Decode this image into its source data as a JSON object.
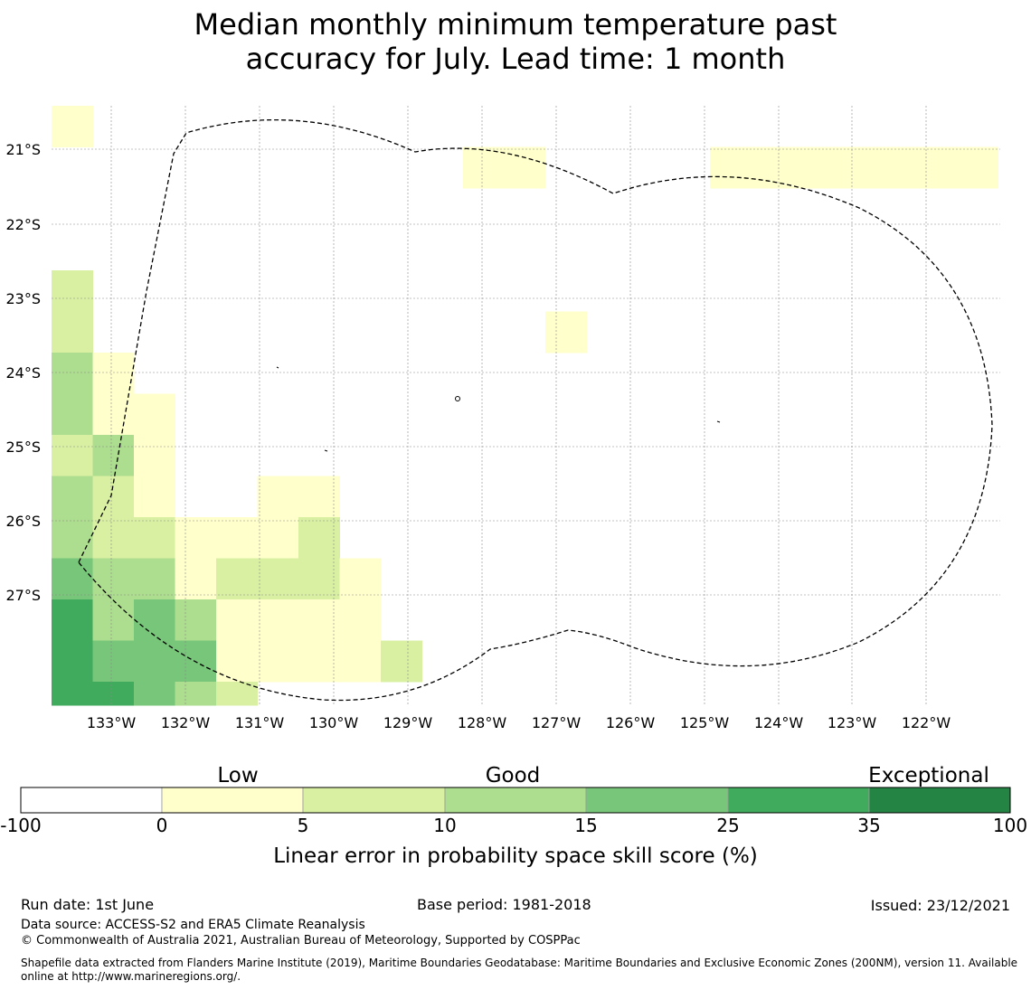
{
  "title": {
    "line1": "Median monthly minimum temperature past",
    "line2": "accuracy for July. Lead time: 1 month"
  },
  "map": {
    "lat_labels": [
      "21°S",
      "22°S",
      "23°S",
      "24°S",
      "25°S",
      "26°S",
      "27°S"
    ],
    "lon_labels": [
      "133°W",
      "132°W",
      "131°W",
      "130°W",
      "129°W",
      "128°W",
      "127°W",
      "126°W",
      "125°W",
      "124°W",
      "123°W",
      "122°W"
    ],
    "color_classes": [
      "#ffffff",
      "#ffffcc",
      "#d9f0a3",
      "#addd8e",
      "#78c679",
      "#41ab5d",
      "#238443"
    ],
    "grid": [
      [
        1,
        -1,
        -1,
        -1,
        -1,
        -1,
        -1,
        -1,
        -1,
        -1,
        -1,
        -1,
        -1,
        -1,
        -1,
        -1,
        -1,
        -1,
        -1,
        -1,
        -1,
        -1,
        -1
      ],
      [
        -1,
        -1,
        -1,
        -1,
        -1,
        -1,
        -1,
        -1,
        -1,
        -1,
        1,
        1,
        -1,
        -1,
        -1,
        -1,
        1,
        1,
        1,
        1,
        1,
        1,
        1
      ],
      [
        -1,
        -1,
        -1,
        -1,
        -1,
        -1,
        -1,
        -1,
        -1,
        -1,
        -1,
        -1,
        -1,
        -1,
        -1,
        -1,
        -1,
        -1,
        -1,
        -1,
        -1,
        -1,
        -1
      ],
      [
        -1,
        -1,
        -1,
        -1,
        -1,
        -1,
        -1,
        -1,
        -1,
        -1,
        -1,
        -1,
        -1,
        -1,
        -1,
        -1,
        -1,
        -1,
        -1,
        -1,
        -1,
        -1,
        -1
      ],
      [
        2,
        -1,
        -1,
        -1,
        -1,
        -1,
        -1,
        -1,
        -1,
        -1,
        -1,
        -1,
        -1,
        -1,
        -1,
        -1,
        -1,
        -1,
        -1,
        -1,
        -1,
        -1,
        -1
      ],
      [
        2,
        -1,
        -1,
        -1,
        -1,
        -1,
        -1,
        -1,
        -1,
        -1,
        -1,
        -1,
        1,
        -1,
        -1,
        -1,
        -1,
        -1,
        -1,
        -1,
        -1,
        -1,
        -1
      ],
      [
        3,
        1,
        -1,
        -1,
        -1,
        -1,
        -1,
        -1,
        -1,
        -1,
        -1,
        -1,
        -1,
        -1,
        -1,
        -1,
        -1,
        -1,
        -1,
        -1,
        -1,
        -1,
        -1
      ],
      [
        3,
        1,
        1,
        -1,
        -1,
        -1,
        -1,
        -1,
        -1,
        -1,
        -1,
        -1,
        -1,
        -1,
        -1,
        -1,
        -1,
        -1,
        -1,
        -1,
        -1,
        -1,
        -1
      ],
      [
        2,
        3,
        1,
        -1,
        -1,
        -1,
        -1,
        -1,
        -1,
        -1,
        -1,
        -1,
        -1,
        -1,
        -1,
        -1,
        -1,
        -1,
        -1,
        -1,
        -1,
        -1,
        -1
      ],
      [
        3,
        2,
        1,
        -1,
        -1,
        1,
        1,
        -1,
        -1,
        -1,
        -1,
        -1,
        -1,
        -1,
        -1,
        -1,
        -1,
        -1,
        -1,
        -1,
        -1,
        -1,
        -1
      ],
      [
        3,
        2,
        2,
        1,
        1,
        1,
        2,
        -1,
        -1,
        -1,
        -1,
        -1,
        -1,
        -1,
        -1,
        -1,
        -1,
        -1,
        -1,
        -1,
        -1,
        -1,
        -1
      ],
      [
        4,
        3,
        3,
        1,
        2,
        2,
        2,
        1,
        -1,
        -1,
        -1,
        -1,
        -1,
        -1,
        -1,
        -1,
        -1,
        -1,
        -1,
        -1,
        -1,
        -1,
        -1
      ],
      [
        5,
        3,
        4,
        3,
        1,
        1,
        1,
        1,
        -1,
        -1,
        -1,
        -1,
        -1,
        -1,
        -1,
        -1,
        -1,
        -1,
        -1,
        -1,
        -1,
        -1,
        -1
      ],
      [
        5,
        4,
        4,
        4,
        1,
        1,
        1,
        1,
        2,
        -1,
        -1,
        -1,
        -1,
        -1,
        -1,
        -1,
        -1,
        -1,
        -1,
        -1,
        -1,
        -1,
        -1
      ],
      [
        5,
        5,
        4,
        3,
        2,
        -1,
        -1,
        -1,
        -1,
        -1,
        -1,
        -1,
        -1,
        -1,
        -1,
        -1,
        -1,
        -1,
        -1,
        -1,
        -1,
        -1,
        -1
      ]
    ]
  },
  "legend": {
    "category_labels": [
      "Low",
      "Good",
      "Exceptional"
    ],
    "tick_labels": [
      "-100",
      "0",
      "5",
      "10",
      "15",
      "25",
      "35",
      "100"
    ],
    "axis_label": "Linear error in probability space skill score (%)"
  },
  "footer": {
    "run_date": "Run date: 1st June",
    "base_period": "Base period: 1981-2018",
    "issued": "Issued: 23/12/2021",
    "data_source": "Data source: ACCESS-S2 and ERA5 Climate Reanalysis",
    "copyright": "© Commonwealth of Australia 2021, Australian Bureau of Meteorology, Supported by COSPPac",
    "shapefile": "Shapefile data extracted from Flanders Marine Institute (2019), Maritime Boundaries Geodatabase: Maritime Boundaries and Exclusive Economic Zones (200NM), version 11. Available online at http://www.marineregions.org/."
  }
}
